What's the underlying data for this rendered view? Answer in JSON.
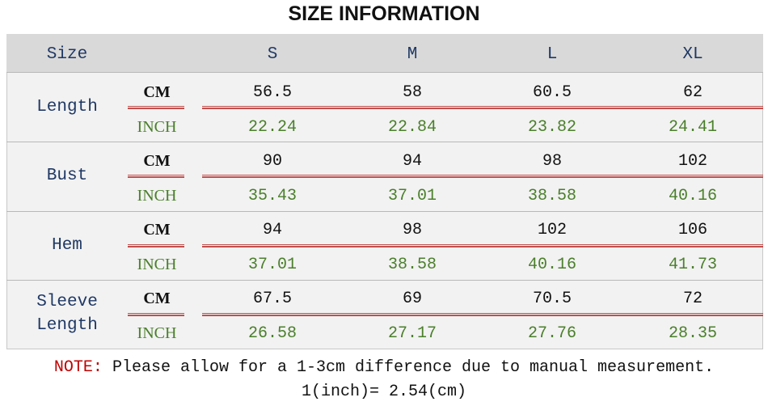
{
  "title": "SIZE INFORMATION",
  "table": {
    "header": [
      "Size",
      "S",
      "M",
      "L",
      "XL"
    ],
    "rows": [
      {
        "label": "Length",
        "cm_unit": "CM",
        "cm": [
          "56.5",
          "58",
          "60.5",
          "62"
        ],
        "inch_unit": "INCH",
        "inch": [
          "22.24",
          "22.84",
          "23.82",
          "24.41"
        ]
      },
      {
        "label": "Bust",
        "cm_unit": "CM",
        "cm": [
          "90",
          "94",
          "98",
          "102"
        ],
        "inch_unit": "INCH",
        "inch": [
          "35.43",
          "37.01",
          "38.58",
          "40.16"
        ]
      },
      {
        "label": "Hem",
        "cm_unit": "CM",
        "cm": [
          "94",
          "98",
          "102",
          "106"
        ],
        "inch_unit": "INCH",
        "inch": [
          "37.01",
          "38.58",
          "40.16",
          "41.73"
        ]
      },
      {
        "label": "Sleeve Length",
        "cm_unit": "CM",
        "cm": [
          "67.5",
          "69",
          "70.5",
          "72"
        ],
        "inch_unit": "INCH",
        "inch": [
          "26.58",
          "27.17",
          "27.76",
          "28.35"
        ]
      }
    ]
  },
  "note": {
    "label": "NOTE:",
    "text": "Please allow for a 1-3cm difference due to manual measurement.",
    "conversion": "1(inch)= 2.54(cm)"
  }
}
